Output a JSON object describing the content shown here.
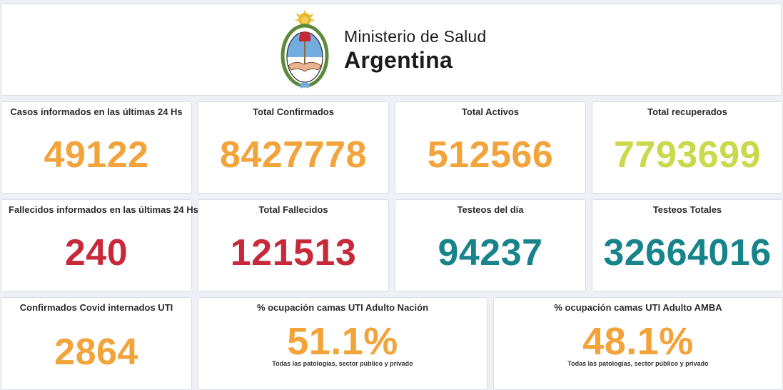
{
  "header": {
    "line1": "Ministerio de Salud",
    "line2": "Argentina",
    "logo_icon": "coat-of-arms-argentina-icon"
  },
  "colors": {
    "orange": "#f2a33a",
    "lime": "#c9d94a",
    "red": "#c7293a",
    "teal": "#17838a"
  },
  "metrics": {
    "casos_24h": {
      "title": "Casos informados en las últimas 24 Hs",
      "value": "49122"
    },
    "total_conf": {
      "title": "Total Confirmados",
      "value": "8427778"
    },
    "total_act": {
      "title": "Total Activos",
      "value": "512566"
    },
    "total_rec": {
      "title": "Total recuperados",
      "value": "7793699"
    },
    "fall_24h": {
      "title": "Fallecidos informados en las últimas 24 Hs",
      "value": "240"
    },
    "total_fall": {
      "title": "Total Fallecidos",
      "value": "121513"
    },
    "test_dia": {
      "title": "Testeos del día",
      "value": "94237"
    },
    "test_tot": {
      "title": "Testeos Totales",
      "value": "32664016"
    },
    "uti": {
      "title": "Confirmados Covid internados UTI",
      "value": "2864"
    },
    "occ_nacion": {
      "title": "% ocupación camas UTI Adulto Nación",
      "value": "51.1%",
      "sub": "Todas las patologías, sector público y privado"
    },
    "occ_amba": {
      "title": "% ocupación camas UTI Adulto AMBA",
      "value": "48.1%",
      "sub": "Todas las patologías, sector público y privado"
    }
  }
}
